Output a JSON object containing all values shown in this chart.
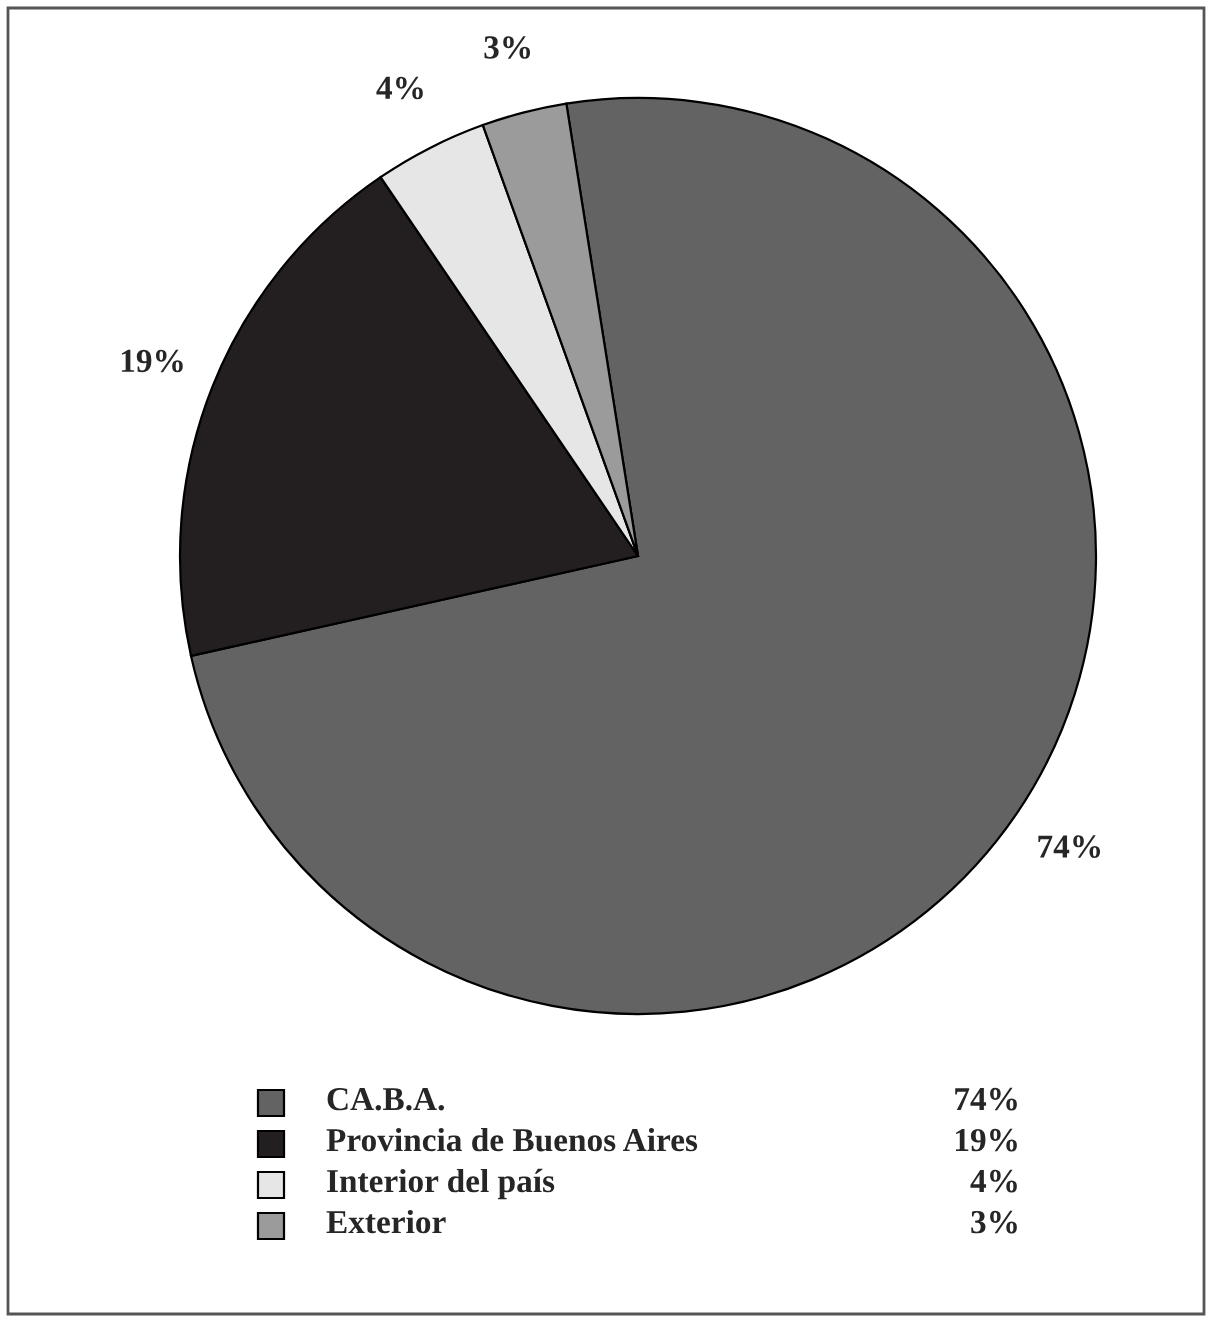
{
  "chart_data": {
    "type": "pie",
    "categories": [
      "CA.B.A.",
      "Provincia de Buenos Aires",
      "Interior del país",
      "Exterior"
    ],
    "values": [
      74,
      19,
      4,
      3
    ],
    "colors": [
      "#636363",
      "#231f20",
      "#e6e6e6",
      "#9b9b9b"
    ],
    "value_labels": [
      "74%",
      "19%",
      "4%",
      "3%"
    ],
    "legend": "bottom"
  }
}
